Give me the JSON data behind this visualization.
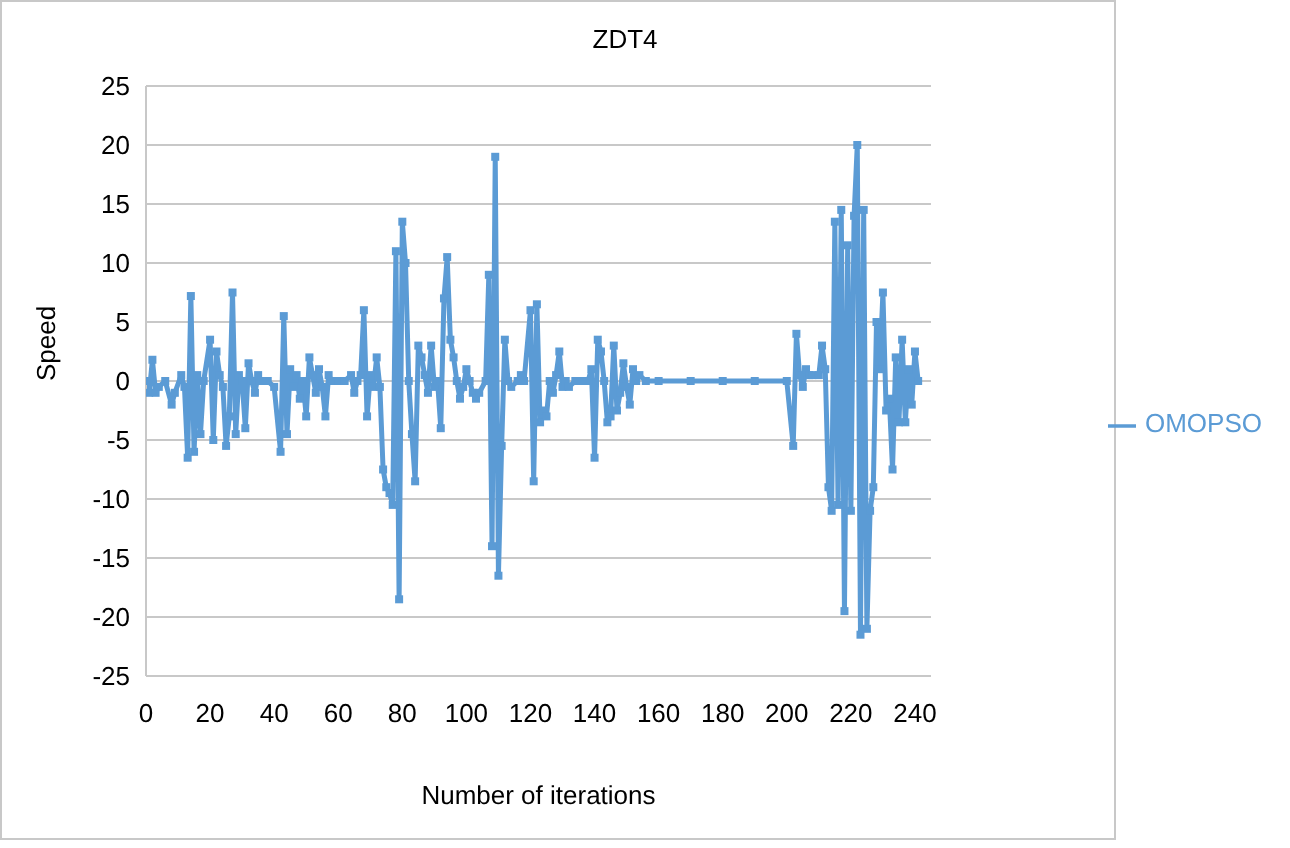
{
  "chart_data": {
    "type": "line",
    "title": "ZDT4",
    "xlabel": "Number of iterations",
    "ylabel": "Speed",
    "x": [
      0,
      1,
      2,
      3,
      4,
      6,
      8,
      9,
      11,
      12,
      13,
      14,
      15,
      16,
      17,
      18,
      20,
      21,
      22,
      23,
      24,
      25,
      26,
      27,
      28,
      29,
      30,
      31,
      32,
      33,
      34,
      35,
      36,
      38,
      40,
      42,
      43,
      44,
      45,
      46,
      47,
      48,
      49,
      50,
      51,
      52,
      53,
      54,
      55,
      56,
      57,
      58,
      60,
      62,
      64,
      65,
      66,
      67,
      68,
      69,
      70,
      71,
      72,
      73,
      74,
      75,
      76,
      77,
      78,
      79,
      80,
      81,
      82,
      83,
      84,
      85,
      86,
      87,
      88,
      89,
      90,
      91,
      92,
      93,
      94,
      95,
      96,
      97,
      98,
      99,
      100,
      101,
      102,
      103,
      104,
      106,
      107,
      108,
      109,
      110,
      111,
      112,
      113,
      114,
      116,
      117,
      118,
      120,
      121,
      122,
      123,
      124,
      125,
      126,
      127,
      128,
      129,
      130,
      131,
      132,
      134,
      136,
      138,
      139,
      140,
      141,
      142,
      143,
      144,
      145,
      146,
      147,
      148,
      149,
      150,
      151,
      152,
      153,
      154,
      156,
      160,
      170,
      180,
      190,
      200,
      202,
      203,
      204,
      205,
      206,
      207,
      208,
      210,
      211,
      212,
      213,
      214,
      215,
      216,
      217,
      218,
      219,
      220,
      221,
      222,
      223,
      224,
      225,
      226,
      227,
      228,
      229,
      230,
      231,
      232,
      233,
      234,
      235,
      236,
      237,
      238,
      239,
      240,
      241
    ],
    "series": [
      {
        "name": "OMOPSO",
        "color": "#5b9bd5",
        "values": [
          0,
          -1,
          1.8,
          -1,
          -0.5,
          0,
          -2,
          -1,
          0.5,
          -0.5,
          -6.5,
          7.2,
          -6,
          0.5,
          -4.5,
          0,
          3.5,
          -5,
          2.5,
          0.5,
          -0.5,
          -5.5,
          -3,
          7.5,
          -4.5,
          0.5,
          0,
          -4,
          1.5,
          0,
          -1,
          0.5,
          0,
          0,
          -0.5,
          -6,
          5.5,
          -4.5,
          1,
          -0.5,
          0.5,
          -1.5,
          0,
          -3,
          2,
          0.5,
          -1,
          1,
          -0.5,
          -3,
          0.5,
          0,
          0,
          0,
          0.5,
          -1,
          0,
          0.5,
          6,
          -3,
          0.5,
          -0.5,
          2,
          -0.5,
          -7.5,
          -9,
          -9.5,
          -10.5,
          11,
          -18.5,
          13.5,
          10,
          0,
          -4.5,
          -8.5,
          3,
          2,
          0.5,
          -1,
          3,
          -0.5,
          0,
          -4,
          7,
          10.5,
          3.5,
          2,
          0,
          -1.5,
          -0.5,
          1,
          0,
          -1,
          -1.5,
          -1,
          0,
          9,
          -14,
          19,
          -16.5,
          -5.5,
          3.5,
          0,
          -0.5,
          0,
          0.5,
          0,
          6,
          -8.5,
          6.5,
          -3.5,
          -2.5,
          -3,
          0,
          -1,
          0.5,
          2.5,
          -0.5,
          0,
          -0.5,
          0,
          0,
          0,
          1,
          -6.5,
          3.5,
          2.5,
          0,
          -3.5,
          -3,
          3,
          -2.5,
          -1,
          1.5,
          -0.5,
          -2,
          1,
          0,
          0.5,
          0,
          0,
          0,
          0,
          0,
          0,
          -5.5,
          4,
          0.5,
          -0.5,
          1,
          0.5,
          0.5,
          0.5,
          3,
          1,
          -9,
          -11,
          13.5,
          -10.5,
          14.5,
          -19.5,
          11.5,
          -11,
          14,
          20,
          -21.5,
          14.5,
          -21,
          -11,
          -9,
          5,
          1,
          7.5,
          -2.5,
          -1.5,
          -7.5,
          2,
          -3.5,
          3.5,
          -3.5,
          1,
          -2,
          2.5,
          0
        ]
      }
    ],
    "xlim": [
      0,
      245
    ],
    "xticks": [
      0,
      20,
      40,
      60,
      80,
      100,
      120,
      140,
      160,
      180,
      200,
      220,
      240
    ],
    "ylim": [
      -25,
      25
    ],
    "yticks": [
      -25,
      -20,
      -15,
      -10,
      -5,
      0,
      5,
      10,
      15,
      20,
      25
    ],
    "grid": "y",
    "legend": "right",
    "marker": "square",
    "line_style": "solid"
  }
}
